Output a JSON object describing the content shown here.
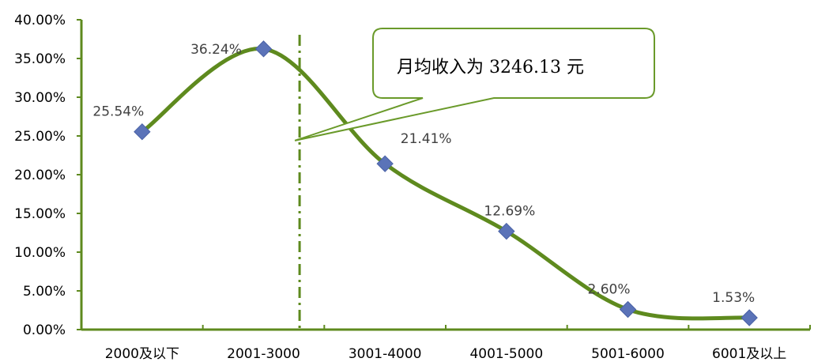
{
  "chart_data": {
    "type": "line",
    "categories": [
      "2000及以下",
      "2001-3000",
      "3001-4000",
      "4001-5000",
      "5001-6000",
      "6001及以上"
    ],
    "values": [
      25.54,
      36.24,
      21.41,
      12.69,
      2.6,
      1.53
    ],
    "data_labels": [
      "25.54%",
      "36.24%",
      "21.41%",
      "12.69%",
      "2.60%",
      "1.53%"
    ],
    "y_ticks": [
      "0.00%",
      "5.00%",
      "10.00%",
      "15.00%",
      "20.00%",
      "25.00%",
      "30.00%",
      "35.00%",
      "40.00%"
    ],
    "ylim": [
      0,
      40
    ],
    "grid": false,
    "smooth": true,
    "marker": "diamond",
    "reference_line": {
      "style": "dash-dot",
      "value": 3246.13
    },
    "annotation": "月均收入为 3246.13 元",
    "colors": {
      "line": "#5e8a1e",
      "marker": "#5b73b8",
      "axis": "#5e8a1e",
      "ref_line": "#5e8a1e",
      "callout_border": "#6a9a2a"
    }
  }
}
